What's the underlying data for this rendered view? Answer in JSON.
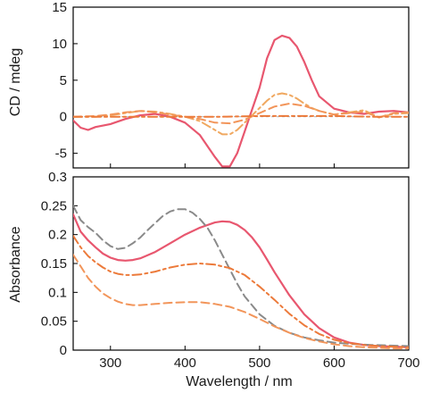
{
  "chart_data": [
    {
      "type": "line",
      "panel": "top",
      "ylabel": "CD / mdeg",
      "xlim": [
        250,
        700
      ],
      "ylim": [
        -7,
        15
      ],
      "yticks": [
        -5,
        0,
        5,
        10,
        15
      ],
      "zero_line": true,
      "series": [
        {
          "color": "#e8576f",
          "style": "solid",
          "x": [
            250,
            260,
            270,
            280,
            300,
            320,
            340,
            360,
            380,
            400,
            420,
            440,
            450,
            460,
            470,
            480,
            490,
            500,
            510,
            520,
            530,
            540,
            550,
            560,
            570,
            580,
            600,
            620,
            640,
            660,
            680,
            700
          ],
          "y": [
            -0.5,
            -1.5,
            -1.8,
            -1.4,
            -1,
            -0.3,
            0.2,
            0.4,
            0,
            -0.8,
            -2.5,
            -5.5,
            -6.8,
            -6.8,
            -5,
            -2,
            1,
            4,
            8,
            10.5,
            11.1,
            10.8,
            9.6,
            7.5,
            5,
            2.8,
            1.1,
            0.6,
            0.4,
            0.7,
            0.8,
            0.6
          ]
        },
        {
          "color": "#f0a860",
          "style": "dashdot",
          "x": [
            250,
            280,
            300,
            320,
            340,
            360,
            380,
            400,
            420,
            440,
            450,
            460,
            470,
            480,
            490,
            500,
            510,
            520,
            530,
            540,
            550,
            560,
            570,
            580,
            600,
            620,
            640,
            660,
            680,
            700
          ],
          "y": [
            0,
            0,
            0.2,
            0.5,
            0.8,
            0.7,
            0.4,
            0,
            -0.6,
            -1.8,
            -2.4,
            -2.4,
            -1.8,
            -0.8,
            0.2,
            1.2,
            2.2,
            3,
            3.2,
            3,
            2.5,
            1.8,
            1.2,
            0.8,
            0.3,
            0.6,
            0.9,
            -0.1,
            0.4,
            0.5
          ]
        },
        {
          "color": "#f2955a",
          "style": "dashed",
          "x": [
            250,
            280,
            300,
            320,
            340,
            360,
            380,
            400,
            420,
            440,
            460,
            480,
            500,
            520,
            540,
            560,
            580,
            600,
            620,
            640,
            660,
            680,
            700
          ],
          "y": [
            0,
            0.1,
            0.3,
            0.6,
            0.8,
            0.6,
            0.3,
            0,
            -0.3,
            -0.8,
            -0.9,
            -0.4,
            0.5,
            1.4,
            1.8,
            1.5,
            0.8,
            0.3,
            0.5,
            0.7,
            -0.1,
            0.5,
            0.6
          ]
        },
        {
          "color": "#ec7a3a",
          "style": "dashdot",
          "x": [
            250,
            300,
            350,
            400,
            450,
            500,
            550,
            600,
            650,
            700
          ],
          "y": [
            0,
            0,
            0,
            0,
            0,
            0.1,
            0.1,
            0.1,
            0,
            0
          ]
        }
      ]
    },
    {
      "type": "line",
      "panel": "bottom",
      "xlabel": "Wavelength / nm",
      "ylabel": "Absorbance",
      "xlim": [
        250,
        700
      ],
      "ylim": [
        0,
        0.3
      ],
      "xticks": [
        300,
        400,
        500,
        600,
        700
      ],
      "yticks": [
        0,
        0.05,
        0.1,
        0.15,
        0.2,
        0.25,
        0.3
      ],
      "series": [
        {
          "color": "#e8576f",
          "style": "solid",
          "x": [
            250,
            260,
            270,
            280,
            290,
            300,
            310,
            320,
            330,
            340,
            360,
            380,
            400,
            420,
            440,
            450,
            460,
            470,
            480,
            490,
            500,
            510,
            520,
            540,
            560,
            580,
            600,
            620,
            640,
            660,
            680,
            700
          ],
          "y": [
            0.235,
            0.205,
            0.19,
            0.178,
            0.167,
            0.16,
            0.156,
            0.155,
            0.156,
            0.159,
            0.17,
            0.185,
            0.2,
            0.212,
            0.221,
            0.223,
            0.222,
            0.217,
            0.208,
            0.195,
            0.178,
            0.157,
            0.135,
            0.095,
            0.062,
            0.038,
            0.022,
            0.013,
            0.009,
            0.007,
            0.006,
            0.005
          ]
        },
        {
          "color": "#8a8a8a",
          "style": "dashed",
          "x": [
            250,
            260,
            270,
            280,
            290,
            300,
            310,
            320,
            330,
            340,
            350,
            360,
            370,
            380,
            390,
            400,
            410,
            420,
            430,
            440,
            450,
            460,
            470,
            480,
            500,
            520,
            540,
            560,
            580,
            600,
            620,
            650,
            700
          ],
          "y": [
            0.25,
            0.225,
            0.213,
            0.203,
            0.19,
            0.18,
            0.175,
            0.177,
            0.185,
            0.195,
            0.208,
            0.22,
            0.232,
            0.24,
            0.244,
            0.244,
            0.238,
            0.227,
            0.212,
            0.19,
            0.165,
            0.14,
            0.115,
            0.093,
            0.062,
            0.042,
            0.03,
            0.022,
            0.017,
            0.013,
            0.011,
            0.009,
            0.007
          ]
        },
        {
          "color": "#ec7a3a",
          "style": "dashdot",
          "x": [
            250,
            260,
            270,
            280,
            290,
            300,
            310,
            320,
            330,
            340,
            360,
            380,
            400,
            420,
            440,
            460,
            480,
            500,
            520,
            540,
            560,
            580,
            600,
            620,
            640,
            660,
            680,
            700
          ],
          "y": [
            0.198,
            0.178,
            0.163,
            0.152,
            0.143,
            0.136,
            0.132,
            0.13,
            0.13,
            0.131,
            0.136,
            0.143,
            0.148,
            0.15,
            0.148,
            0.142,
            0.13,
            0.11,
            0.087,
            0.063,
            0.043,
            0.028,
            0.018,
            0.012,
            0.009,
            0.007,
            0.006,
            0.005
          ]
        },
        {
          "color": "#f2955a",
          "style": "dashed",
          "x": [
            250,
            260,
            270,
            280,
            290,
            300,
            310,
            320,
            330,
            340,
            360,
            380,
            400,
            420,
            440,
            460,
            480,
            500,
            520,
            540,
            560,
            580,
            600,
            620,
            640,
            660,
            680,
            700
          ],
          "y": [
            0.165,
            0.145,
            0.125,
            0.11,
            0.098,
            0.09,
            0.084,
            0.08,
            0.078,
            0.078,
            0.08,
            0.082,
            0.083,
            0.083,
            0.08,
            0.075,
            0.066,
            0.054,
            0.041,
            0.03,
            0.021,
            0.015,
            0.01,
            0.007,
            0.005,
            0.004,
            0.003,
            0.003
          ]
        }
      ]
    }
  ]
}
